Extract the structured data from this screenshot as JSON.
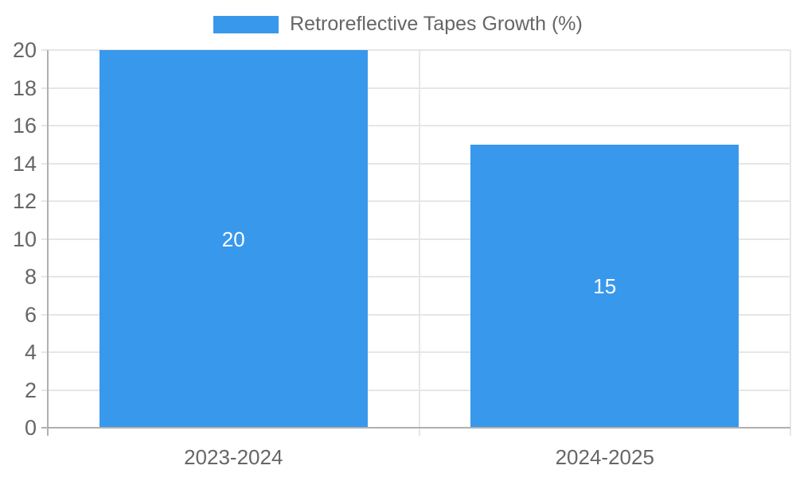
{
  "legend": {
    "label": "Retroreflective Tapes Growth (%)"
  },
  "chart_data": {
    "type": "bar",
    "title": "Retroreflective Tapes Growth (%)",
    "categories": [
      "2023-2024",
      "2024-2025"
    ],
    "values": [
      20,
      15
    ],
    "data_labels": [
      "20",
      "15"
    ],
    "xlabel": "",
    "ylabel": "",
    "ylim": [
      0,
      20
    ],
    "ytick_step": 2,
    "ytick_labels": [
      "0",
      "2",
      "4",
      "6",
      "8",
      "10",
      "12",
      "14",
      "16",
      "18",
      "20"
    ],
    "grid": true,
    "legend_position": "top"
  },
  "colors": {
    "bar": "#3898ec",
    "grid": "#e6e6e6",
    "axis": "#b0b0b0",
    "tick_text": "#666666",
    "data_label": "#ffffff",
    "background": "#ffffff"
  }
}
